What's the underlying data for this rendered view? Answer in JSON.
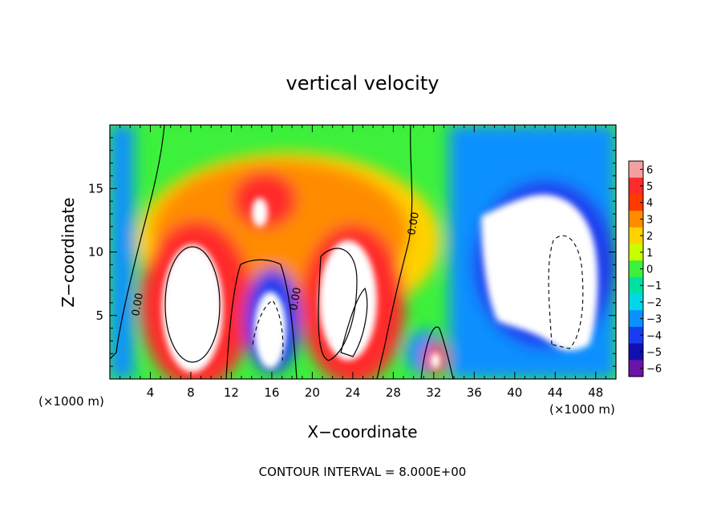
{
  "chart_data": {
    "type": "heatmap",
    "title": "vertical velocity",
    "xlabel": "X−coordinate",
    "ylabel": "Z−coordinate",
    "x_unit_label_left": "(×1000 m)",
    "x_unit_label_right": "(×1000 m)",
    "footer": "CONTOUR INTERVAL = 8.000E+00",
    "xlim": [
      0,
      50
    ],
    "ylim": [
      0,
      20
    ],
    "x_ticks": [
      4,
      8,
      12,
      16,
      20,
      24,
      28,
      32,
      36,
      40,
      44,
      48
    ],
    "y_ticks": [
      5,
      10,
      15
    ],
    "colorbar": {
      "levels": [
        6,
        5,
        4,
        3,
        2,
        1,
        0,
        -1,
        -2,
        -3,
        -4,
        -5,
        -6
      ],
      "labels": [
        "6",
        "5",
        "4",
        "3",
        "2",
        "1",
        "0",
        "−1",
        "−2",
        "−3",
        "−4",
        "−5",
        "−6"
      ],
      "colors": [
        "#f5a0a0",
        "#ff2a2a",
        "#ff3a00",
        "#ff8c00",
        "#ffd200",
        "#c8ff00",
        "#3cf03c",
        "#00e0a0",
        "#00d8e8",
        "#0a90ff",
        "#1a3cf0",
        "#1010b0",
        "#6a14a8"
      ]
    },
    "contour_labels": [
      "0.00",
      "0.00",
      "0.00",
      "0.00"
    ],
    "features": [
      {
        "kind": "updraft",
        "x": 8.5,
        "z": 6.0,
        "value": 6
      },
      {
        "kind": "updraft",
        "x": 23.0,
        "z": 6.5,
        "value": 6
      },
      {
        "kind": "updraft",
        "x": 14.8,
        "z": 13.0,
        "value": 6
      },
      {
        "kind": "updraft",
        "x": 32.0,
        "z": 1.5,
        "value": 5
      },
      {
        "kind": "downdraft",
        "x": 15.5,
        "z": 4.5,
        "value": -6
      },
      {
        "kind": "downdraft",
        "x": 43.0,
        "z": 8.5,
        "value": -6
      },
      {
        "kind": "downdraft",
        "x": 40.0,
        "z": 9.0,
        "value": -6
      },
      {
        "kind": "downdraft",
        "x": 1.5,
        "z": 11.0,
        "value": -4
      }
    ]
  }
}
